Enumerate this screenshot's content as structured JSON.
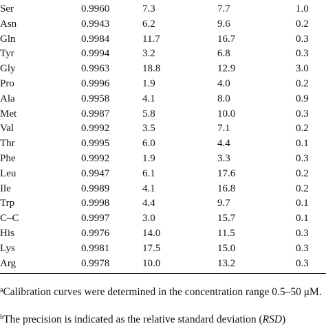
{
  "table": {
    "rows": [
      [
        "Ser",
        "0.9960",
        "7.3",
        "7.7",
        "1.0"
      ],
      [
        "Asn",
        "0.9943",
        "6.2",
        "9.6",
        "0.2"
      ],
      [
        "Gln",
        "0.9984",
        "11.7",
        "16.7",
        "0.3"
      ],
      [
        "Tyr",
        "0.9994",
        "3.2",
        "6.8",
        "0.3"
      ],
      [
        "Gly",
        "0.9963",
        "18.8",
        "12.9",
        "3.0"
      ],
      [
        "Pro",
        "0.9996",
        "1.9",
        "4.0",
        "0.2"
      ],
      [
        "Ala",
        "0.9958",
        "4.1",
        "8.0",
        "0.9"
      ],
      [
        "Met",
        "0.9987",
        "5.8",
        "10.0",
        "0.3"
      ],
      [
        "Val",
        "0.9992",
        "3.5",
        "7.1",
        "0.2"
      ],
      [
        "Thr",
        "0.9995",
        "6.0",
        "4.4",
        "0.1"
      ],
      [
        "Phe",
        "0.9992",
        "1.9",
        "3.3",
        "0.3"
      ],
      [
        "Leu",
        "0.9947",
        "6.1",
        "17.6",
        "0.2"
      ],
      [
        "Ile",
        "0.9989",
        "4.1",
        "16.8",
        "0.2"
      ],
      [
        "Trp",
        "0.9998",
        "4.4",
        "9.7",
        "0.1"
      ],
      [
        "C–C",
        "0.9997",
        "3.0",
        "15.7",
        "0.1"
      ],
      [
        "His",
        "0.9976",
        "14.0",
        "11.5",
        "0.3"
      ],
      [
        "Lys",
        "0.9981",
        "17.5",
        "15.0",
        "0.3"
      ],
      [
        "Arg",
        "0.9978",
        "10.0",
        "13.2",
        "0.3"
      ]
    ]
  },
  "footnotes": [
    {
      "mark": "a",
      "text": "Calibration curves were determined in the concentration range 0.5–50 μM."
    },
    {
      "mark": "b",
      "parts": [
        "The precision is indicated as the relative standard deviation (",
        "RSD",
        ")"
      ]
    }
  ]
}
